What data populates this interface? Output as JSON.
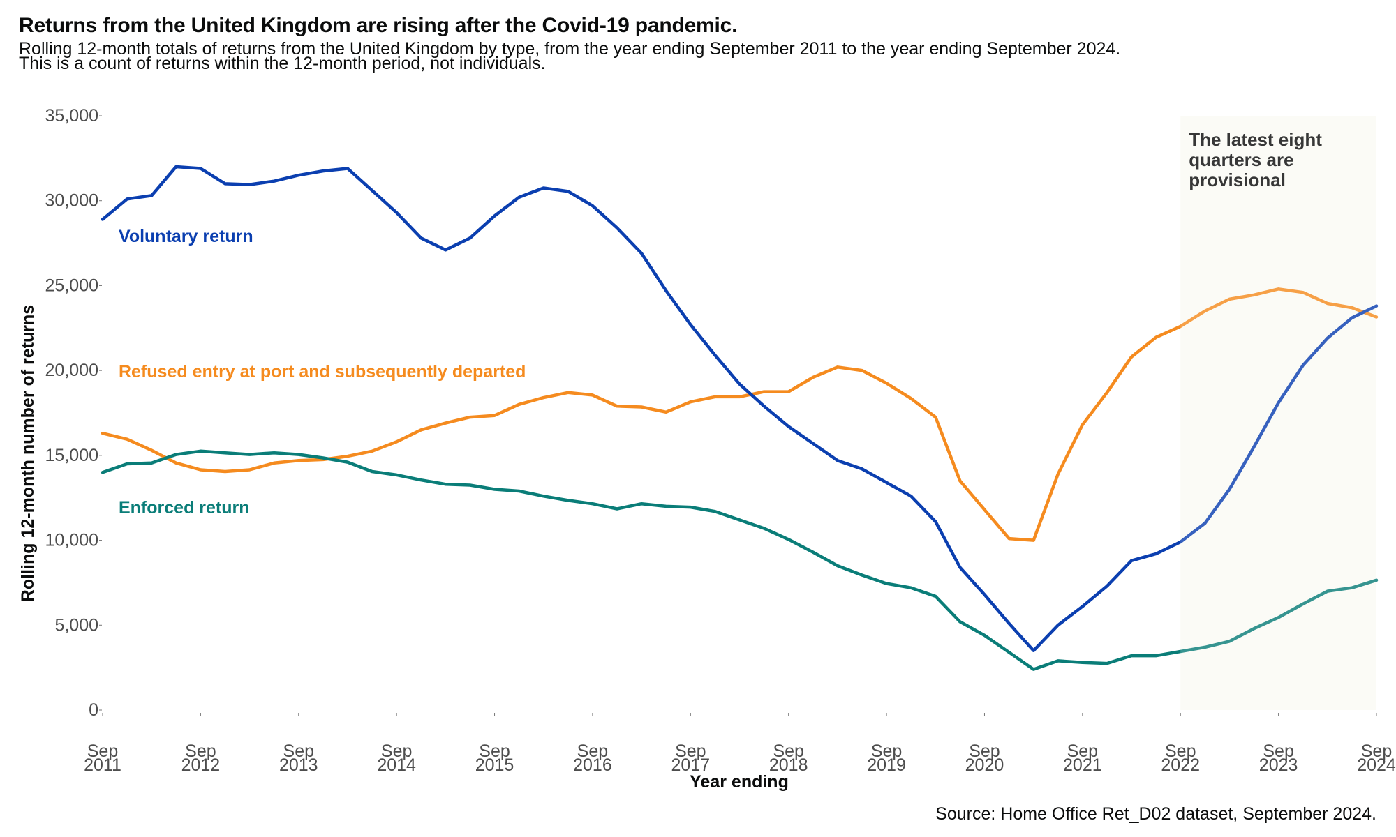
{
  "title": "Returns from the United Kingdom are rising after the Covid-19 pandemic.",
  "subtitle_lines": [
    "Rolling 12-month totals of returns from the United Kingdom by type, from the year ending September 2011 to the year ending September 2024.",
    "This is a count of returns within the 12-month period, not individuals."
  ],
  "source": "Source: Home Office Ret_D02 dataset, September 2024.",
  "colors": {
    "voluntary": "#0b3fb0",
    "refused": "#f58b1f",
    "enforced": "#0a7d78",
    "provisional_bg": "#fafbf5",
    "tick": "#4d4d4d"
  },
  "chart_data": {
    "type": "line",
    "xlabel": "Year ending",
    "ylabel": "Rolling 12-month number of returns",
    "ylim": [
      0,
      35000
    ],
    "yticks": [
      0,
      5000,
      10000,
      15000,
      20000,
      25000,
      30000,
      35000
    ],
    "ytick_labels": [
      "0",
      "5,000",
      "10,000",
      "15,000",
      "20,000",
      "25,000",
      "30,000",
      "35,000"
    ],
    "xlim": [
      "Sep 2011",
      "Sep 2024"
    ],
    "x_tick_labels": [
      [
        "Sep",
        "2011"
      ],
      [
        "Sep",
        "2012"
      ],
      [
        "Sep",
        "2013"
      ],
      [
        "Sep",
        "2014"
      ],
      [
        "Sep",
        "2015"
      ],
      [
        "Sep",
        "2016"
      ],
      [
        "Sep",
        "2017"
      ],
      [
        "Sep",
        "2018"
      ],
      [
        "Sep",
        "2019"
      ],
      [
        "Sep",
        "2020"
      ],
      [
        "Sep",
        "2021"
      ],
      [
        "Sep",
        "2022"
      ],
      [
        "Sep",
        "2023"
      ],
      [
        "Sep",
        "2024"
      ]
    ],
    "x": [
      "Sep 2011",
      "Dec 2011",
      "Mar 2012",
      "Jun 2012",
      "Sep 2012",
      "Dec 2012",
      "Mar 2013",
      "Jun 2013",
      "Sep 2013",
      "Dec 2013",
      "Mar 2014",
      "Jun 2014",
      "Sep 2014",
      "Dec 2014",
      "Mar 2015",
      "Jun 2015",
      "Sep 2015",
      "Dec 2015",
      "Mar 2016",
      "Jun 2016",
      "Sep 2016",
      "Dec 2016",
      "Mar 2017",
      "Jun 2017",
      "Sep 2017",
      "Dec 2017",
      "Mar 2018",
      "Jun 2018",
      "Sep 2018",
      "Dec 2018",
      "Mar 2019",
      "Jun 2019",
      "Sep 2019",
      "Dec 2019",
      "Mar 2020",
      "Jun 2020",
      "Sep 2020",
      "Dec 2020",
      "Mar 2021",
      "Jun 2021",
      "Sep 2021",
      "Dec 2021",
      "Mar 2022",
      "Jun 2022",
      "Sep 2022",
      "Dec 2022",
      "Mar 2023",
      "Jun 2023",
      "Sep 2023",
      "Dec 2023",
      "Mar 2024",
      "Jun 2024",
      "Sep 2024"
    ],
    "grid": false,
    "legend": "direct labels on lines",
    "series": [
      {
        "name": "Voluntary return",
        "values": [
          28900,
          30100,
          30300,
          32000,
          31900,
          31000,
          30950,
          31150,
          31500,
          31750,
          31900,
          30600,
          29300,
          27800,
          27100,
          27800,
          29100,
          30200,
          30750,
          30550,
          29700,
          28400,
          26900,
          24700,
          22700,
          20900,
          19200,
          17900,
          16700,
          15700,
          14700,
          14200,
          13400,
          12600,
          11100,
          8400,
          6800,
          5100,
          3500,
          5000,
          6100,
          7300,
          8800,
          9200,
          9900,
          11000,
          13000,
          15500,
          18100,
          20300,
          21900,
          23100,
          23800
        ]
      },
      {
        "name": "Refused entry at port and subsequently departed",
        "values": [
          16300,
          15950,
          15300,
          14550,
          14150,
          14050,
          14150,
          14550,
          14700,
          14750,
          14950,
          15250,
          15800,
          16500,
          16900,
          17250,
          17350,
          18000,
          18400,
          18700,
          18550,
          17900,
          17850,
          17550,
          18150,
          18450,
          18450,
          18750,
          18750,
          19600,
          20200,
          20000,
          19250,
          18350,
          17250,
          13500,
          11800,
          10100,
          10000,
          13900,
          16800,
          18700,
          20800,
          21950,
          22600,
          23500,
          24200,
          24450,
          24800,
          24600,
          23950,
          23700,
          23150
        ]
      },
      {
        "name": "Enforced return",
        "values": [
          14000,
          14500,
          14550,
          15050,
          15250,
          15150,
          15050,
          15150,
          15050,
          14850,
          14600,
          14050,
          13850,
          13550,
          13300,
          13250,
          13000,
          12900,
          12600,
          12350,
          12150,
          11850,
          12150,
          12000,
          11950,
          11700,
          11200,
          10700,
          10050,
          9300,
          8500,
          7950,
          7450,
          7200,
          6700,
          5200,
          4400,
          3400,
          2400,
          2900,
          2800,
          2750,
          3200,
          3200,
          3450,
          3700,
          4050,
          4800,
          5450,
          6250,
          7000,
          7200,
          7650
        ]
      }
    ],
    "series_labels": {
      "voluntary": "Voluntary return",
      "refused": "Refused entry at port and subsequently departed",
      "enforced": "Enforced return"
    },
    "annotations": {
      "provisional_lines": [
        "The latest eight",
        "quarters are",
        "provisional"
      ],
      "provisional_range": [
        "Sep 2022",
        "Sep 2024"
      ]
    }
  }
}
